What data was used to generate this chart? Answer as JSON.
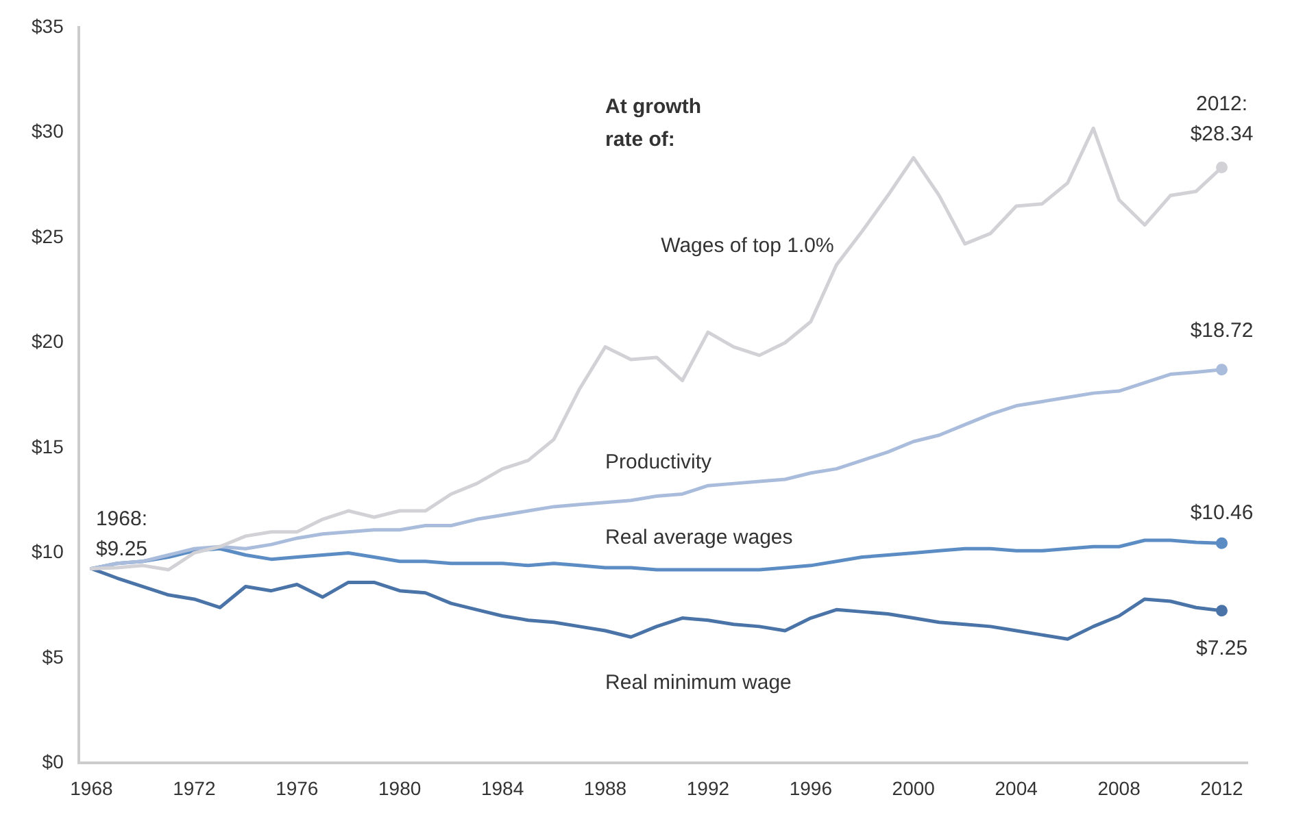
{
  "chart_data": {
    "type": "line",
    "x": [
      1968,
      1969,
      1970,
      1971,
      1972,
      1973,
      1974,
      1975,
      1976,
      1977,
      1978,
      1979,
      1980,
      1981,
      1982,
      1983,
      1984,
      1985,
      1986,
      1987,
      1988,
      1989,
      1990,
      1991,
      1992,
      1993,
      1994,
      1995,
      1996,
      1997,
      1998,
      1999,
      2000,
      2001,
      2002,
      2003,
      2004,
      2005,
      2006,
      2007,
      2008,
      2009,
      2010,
      2011,
      2012
    ],
    "series": [
      {
        "name": "Wages of top 1.0%",
        "color": "#d2d2d6",
        "values": [
          9.25,
          9.3,
          9.4,
          9.2,
          10.0,
          10.3,
          10.8,
          11.0,
          11.0,
          11.6,
          12.0,
          11.7,
          12.0,
          12.0,
          12.8,
          13.3,
          14.0,
          14.4,
          15.4,
          17.8,
          19.8,
          19.2,
          19.3,
          18.2,
          20.5,
          19.8,
          19.4,
          20.0,
          21.0,
          23.7,
          25.3,
          27.0,
          28.8,
          27.0,
          24.7,
          25.2,
          26.5,
          26.6,
          27.6,
          30.2,
          26.8,
          25.6,
          27.0,
          27.2,
          28.34
        ]
      },
      {
        "name": "Productivity",
        "color": "#a9bcdc",
        "values": [
          9.25,
          9.5,
          9.6,
          9.9,
          10.2,
          10.3,
          10.2,
          10.4,
          10.7,
          10.9,
          11.0,
          11.1,
          11.1,
          11.3,
          11.3,
          11.6,
          11.8,
          12.0,
          12.2,
          12.3,
          12.4,
          12.5,
          12.7,
          12.8,
          13.2,
          13.3,
          13.4,
          13.5,
          13.8,
          14.0,
          14.4,
          14.8,
          15.3,
          15.6,
          16.1,
          16.6,
          17.0,
          17.2,
          17.4,
          17.6,
          17.7,
          18.1,
          18.5,
          18.6,
          18.72
        ]
      },
      {
        "name": "Real average wages",
        "color": "#5b8cc4",
        "values": [
          9.25,
          9.5,
          9.6,
          9.8,
          10.1,
          10.2,
          9.9,
          9.7,
          9.8,
          9.9,
          10.0,
          9.8,
          9.6,
          9.6,
          9.5,
          9.5,
          9.5,
          9.4,
          9.5,
          9.4,
          9.3,
          9.3,
          9.2,
          9.2,
          9.2,
          9.2,
          9.2,
          9.3,
          9.4,
          9.6,
          9.8,
          9.9,
          10.0,
          10.1,
          10.2,
          10.2,
          10.1,
          10.1,
          10.2,
          10.3,
          10.3,
          10.6,
          10.6,
          10.5,
          10.46
        ]
      },
      {
        "name": "Real minimum wage",
        "color": "#4a74a8",
        "values": [
          9.25,
          8.8,
          8.4,
          8.0,
          7.8,
          7.4,
          8.4,
          8.2,
          8.5,
          7.9,
          8.6,
          8.6,
          8.2,
          8.1,
          7.6,
          7.3,
          7.0,
          6.8,
          6.7,
          6.5,
          6.3,
          6.0,
          6.5,
          6.9,
          6.8,
          6.6,
          6.5,
          6.3,
          6.9,
          7.3,
          7.2,
          7.1,
          6.9,
          6.7,
          6.6,
          6.5,
          6.3,
          6.1,
          5.9,
          6.5,
          7.0,
          7.8,
          7.7,
          7.4,
          7.25
        ]
      }
    ],
    "xlim": [
      1967.5,
      2013
    ],
    "xticks": [
      1968,
      1972,
      1976,
      1980,
      1984,
      1988,
      1992,
      1996,
      2000,
      2004,
      2008,
      2012
    ],
    "ylim": [
      0,
      35
    ],
    "yticks": [
      {
        "value": 0,
        "label": "$0"
      },
      {
        "value": 5,
        "label": "$5"
      },
      {
        "value": 10,
        "label": "$10"
      },
      {
        "value": 15,
        "label": "$15"
      },
      {
        "value": 20,
        "label": "$20"
      },
      {
        "value": 25,
        "label": "$25"
      },
      {
        "value": 30,
        "label": "$30"
      },
      {
        "value": 35,
        "label": "$35"
      }
    ],
    "grid": false,
    "legend": false,
    "line_style": "solid",
    "annotations": [
      "At growth rate of:",
      "1968: $9.25",
      "2012: $28.34",
      "$18.72",
      "$10.46",
      "$7.25"
    ]
  }
}
